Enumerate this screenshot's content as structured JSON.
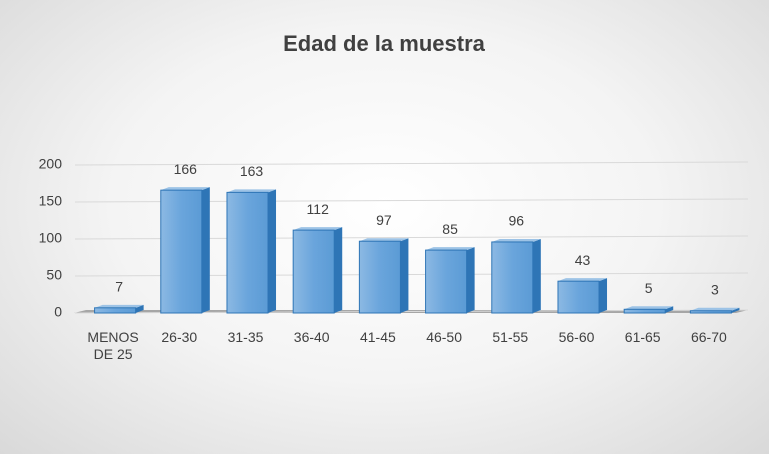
{
  "chart_data": {
    "type": "bar",
    "title": "Edad de la muestra",
    "categories": [
      "MENOS DE 25",
      "26-30",
      "31-35",
      "36-40",
      "41-45",
      "46-50",
      "51-55",
      "56-60",
      "61-65",
      "66-70"
    ],
    "values": [
      7,
      166,
      163,
      112,
      97,
      85,
      96,
      43,
      5,
      3
    ],
    "color": "#5b9bd5",
    "ylim": [
      0,
      200
    ],
    "yticks": [
      0,
      50,
      100,
      150,
      200
    ],
    "grid": true
  }
}
